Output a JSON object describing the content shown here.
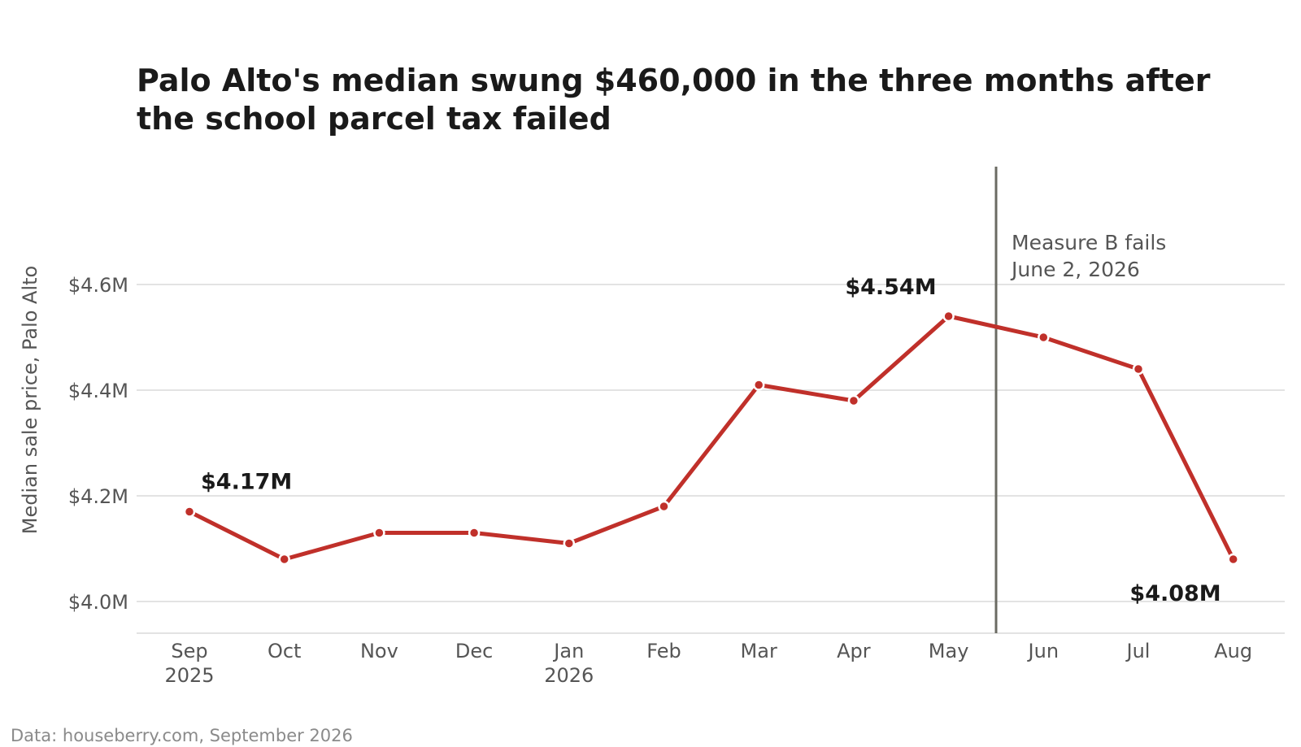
{
  "title": {
    "line1": "Palo Alto's median swung $460,000 in the three months after",
    "line2": "the school parcel tax failed"
  },
  "source": "Data: houseberry.com, September 2026",
  "colors": {
    "line": "#c0302a",
    "grid": "#e3e3e3",
    "event_line": "#6b6b63",
    "axis_text": "#555555",
    "title_text": "#1a1a1a",
    "source_text": "#8a8a8a"
  },
  "chart_data": {
    "type": "line",
    "title": "Palo Alto's median swung $460,000 in the three months after the school parcel tax failed",
    "xlabel": "",
    "ylabel": "Median sale price, Palo Alto",
    "categories": [
      "Sep 2025",
      "Oct",
      "Nov",
      "Dec",
      "Jan 2026",
      "Feb",
      "Mar",
      "Apr",
      "May",
      "Jun",
      "Jul",
      "Aug"
    ],
    "tick_labels": [
      [
        "Sep",
        "2025"
      ],
      [
        "Oct"
      ],
      [
        "Nov"
      ],
      [
        "Dec"
      ],
      [
        "Jan",
        "2026"
      ],
      [
        "Feb"
      ],
      [
        "Mar"
      ],
      [
        "Apr"
      ],
      [
        "May"
      ],
      [
        "Jun"
      ],
      [
        "Jul"
      ],
      [
        "Aug"
      ]
    ],
    "series": [
      {
        "values": [
          4.17,
          4.08,
          4.13,
          4.13,
          4.11,
          4.18,
          4.41,
          4.38,
          4.54,
          4.5,
          4.44,
          4.08
        ]
      }
    ],
    "units": "millions USD",
    "ylim": [
      3.94,
      4.82
    ],
    "yticks": [
      4.0,
      4.2,
      4.4,
      4.6
    ],
    "ytick_labels": [
      "$4.0M",
      "$4.2M",
      "$4.4M",
      "$4.6M"
    ],
    "grid": "horizontal",
    "legend": "none",
    "event": {
      "x_between": [
        "May",
        "Jun"
      ],
      "label_line1": "Measure B fails",
      "label_line2": "June 2, 2026"
    },
    "data_labels": [
      {
        "index": 0,
        "text": "$4.17M",
        "position": "above-right"
      },
      {
        "index": 8,
        "text": "$4.54M",
        "position": "above-left"
      },
      {
        "index": 11,
        "text": "$4.08M",
        "position": "below-left"
      }
    ]
  }
}
